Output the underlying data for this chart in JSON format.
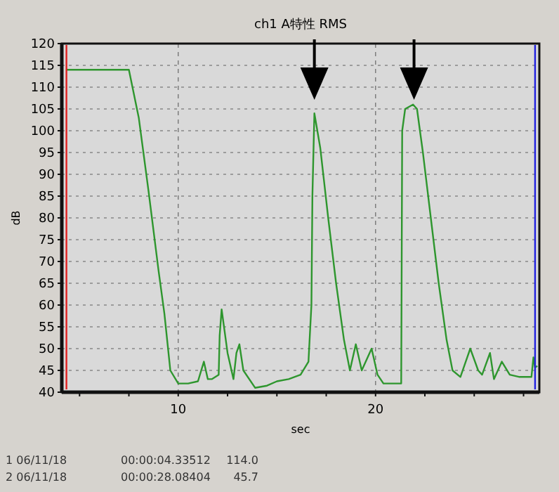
{
  "chart_data": {
    "type": "line",
    "title": "ch1 A特性 RMS",
    "xlabel": "sec",
    "ylabel": "dB",
    "x": [
      4.34,
      5,
      6,
      7,
      7.5,
      8,
      8.5,
      9,
      9.3,
      9.6,
      10,
      10.5,
      11,
      11.3,
      11.5,
      11.7,
      12.05,
      12.1,
      12.2,
      12.5,
      12.8,
      12.95,
      13.1,
      13.3,
      13.9,
      14.5,
      15,
      15.6,
      16.2,
      16.6,
      16.75,
      16.8,
      16.9,
      17.2,
      17.6,
      18,
      18.4,
      18.7,
      19,
      19.3,
      19.8,
      20.1,
      20.4,
      21,
      21.3,
      21.35,
      21.5,
      21.9,
      22.1,
      22.4,
      22.8,
      23.2,
      23.6,
      23.9,
      24.3,
      24.8,
      25.2,
      25.4,
      25.8,
      26,
      26.4,
      26.8,
      27.3,
      27.9,
      28,
      28.08,
      28.2
    ],
    "series": [
      {
        "color": "#2e962e",
        "values": [
          114,
          114,
          114,
          114,
          114,
          103,
          86,
          68,
          58,
          45,
          42,
          42,
          42.5,
          47,
          43,
          43,
          44,
          53,
          59,
          49,
          43,
          49,
          51,
          45,
          41,
          41.5,
          42.5,
          43,
          44,
          47,
          60,
          85,
          104,
          96,
          80,
          65,
          52,
          45,
          51,
          45,
          50,
          44,
          42,
          42,
          42,
          100,
          105,
          106,
          105,
          95,
          80,
          65,
          52,
          45,
          43.5,
          50,
          45,
          44,
          49,
          43,
          47,
          44,
          43.5,
          43.5,
          48,
          45.7,
          46
        ]
      }
    ],
    "xlim": [
      4.1,
      28.3
    ],
    "ylim": [
      40,
      120
    ],
    "xticks": [
      {
        "value": 5,
        "label": null
      },
      {
        "value": 7.5,
        "label": null
      },
      10,
      {
        "value": 12.5,
        "label": null
      },
      {
        "value": 15,
        "label": null
      },
      {
        "value": 17.5,
        "label": null
      },
      20,
      {
        "value": 22.5,
        "label": null
      },
      {
        "value": 25,
        "label": null
      },
      {
        "value": 27.5,
        "label": null
      }
    ],
    "yticks": [
      40,
      45,
      50,
      55,
      60,
      65,
      70,
      75,
      80,
      85,
      90,
      95,
      100,
      105,
      110,
      115,
      120
    ],
    "grid": true,
    "line_style": "solid",
    "marker": "none",
    "ref_lines": [
      {
        "axis": "x",
        "value": 4.33512,
        "color": "#e02020"
      },
      {
        "axis": "x",
        "value": 28.08404,
        "color": "#2020e0"
      }
    ],
    "annotations": [
      "1 06/11/18",
      "00:00:04.33512",
      "114.0",
      "2 06/11/18",
      "00:00:28.08404",
      "45.7"
    ]
  }
}
